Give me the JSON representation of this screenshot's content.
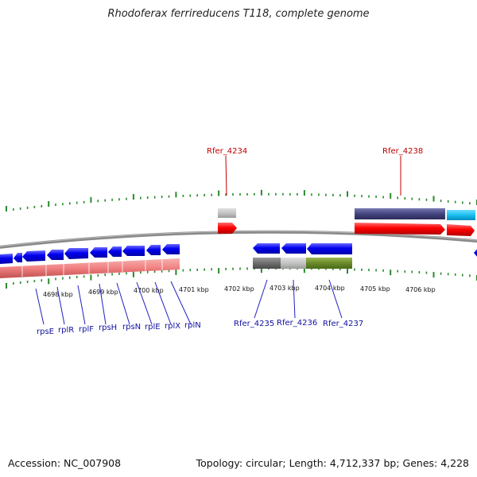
{
  "title": "Rhodoferax ferrireducens T118, complete genome",
  "accession": "Accession: NC_007908",
  "topology": "Topology: circular; Length: 4,712,337 bp; Genes: 4,228",
  "colors": {
    "backbone": "#7a7a7a",
    "tick": "#2a8a2a",
    "gene_forward": "#ff0000",
    "gene_reverse": "#0000ee",
    "rrna_pink": "#f08a8a",
    "cds_dark": "#4a4a8a",
    "cds_cyan": "#18c0f0",
    "grey_light": "#c8c8c8",
    "grey_dark": "#707070",
    "olive": "#6a8a2a",
    "label_blue": "#1010a0",
    "label_red": "#c00000"
  },
  "scale_labels": [
    "4698 kbp",
    "4699 kbp",
    "4700 kbp",
    "4701 kbp",
    "4702 kbp",
    "4703 kbp",
    "4704 kbp",
    "4705 kbp",
    "4706 kbp"
  ],
  "gene_labels_blue": [
    "rpsE",
    "rplR",
    "rplF",
    "rpsH",
    "rpsN",
    "rplE",
    "rplX",
    "rplN",
    "Rfer_4235",
    "Rfer_4236",
    "Rfer_4237"
  ],
  "gene_labels_red": [
    "Rfer_4234",
    "Rfer_4238"
  ]
}
